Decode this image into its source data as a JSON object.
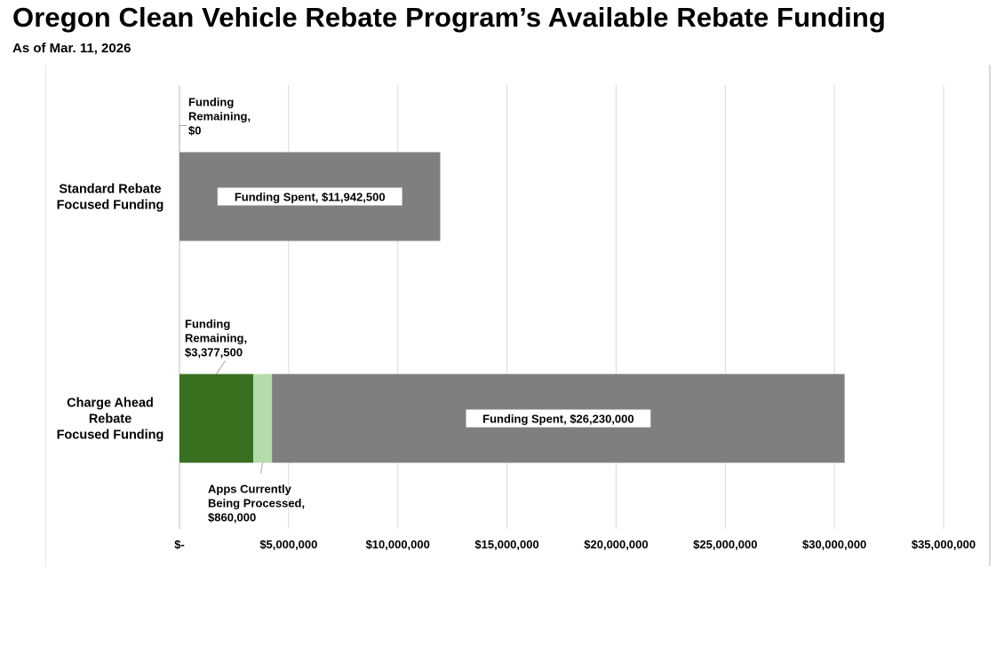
{
  "header": {
    "title": "Oregon Clean Vehicle Rebate Program’s Available Rebate Funding",
    "subtitle": "As of Mar. 11, 2026"
  },
  "chart_data": {
    "type": "bar",
    "orientation": "horizontal",
    "stacked": true,
    "title": "Oregon Clean Vehicle Rebate Program’s Available Rebate Funding",
    "subtitle": "As of Mar. 11, 2026",
    "categories": [
      [
        "Standard Rebate",
        "Focused Funding"
      ],
      [
        "Charge Ahead",
        "Rebate",
        "Focused Funding"
      ]
    ],
    "series": [
      {
        "name": "Funding Remaining",
        "color": "#38701f",
        "values": [
          0,
          3377500
        ]
      },
      {
        "name": "Apps Currently Being Processed",
        "color": "#b4dcaa",
        "values": [
          0,
          860000
        ]
      },
      {
        "name": "Funding Spent",
        "color": "#7f7f7f",
        "values": [
          11942500,
          26230000
        ]
      }
    ],
    "xlim": [
      0,
      35000000
    ],
    "x_ticks": [
      0,
      5000000,
      10000000,
      15000000,
      20000000,
      25000000,
      30000000,
      35000000
    ],
    "x_tick_labels": [
      "$-",
      "$5,000,000",
      "$10,000,000",
      "$15,000,000",
      "$20,000,000",
      "$25,000,000",
      "$30,000,000",
      "$35,000,000"
    ],
    "grid": true,
    "legend": "none",
    "annotations": [
      {
        "category": 0,
        "series": 0,
        "lines": [
          "Funding",
          "Remaining,",
          "$0"
        ]
      },
      {
        "category": 0,
        "series": 2,
        "lines": [
          "Funding Spent,  $11,942,500"
        ]
      },
      {
        "category": 1,
        "series": 0,
        "lines": [
          "Funding",
          "Remaining,",
          "$3,377,500"
        ]
      },
      {
        "category": 1,
        "series": 1,
        "lines": [
          "Apps Currently",
          "Being Processed,",
          "$860,000"
        ]
      },
      {
        "category": 1,
        "series": 2,
        "lines": [
          "Funding Spent,  $26,230,000"
        ]
      }
    ]
  }
}
